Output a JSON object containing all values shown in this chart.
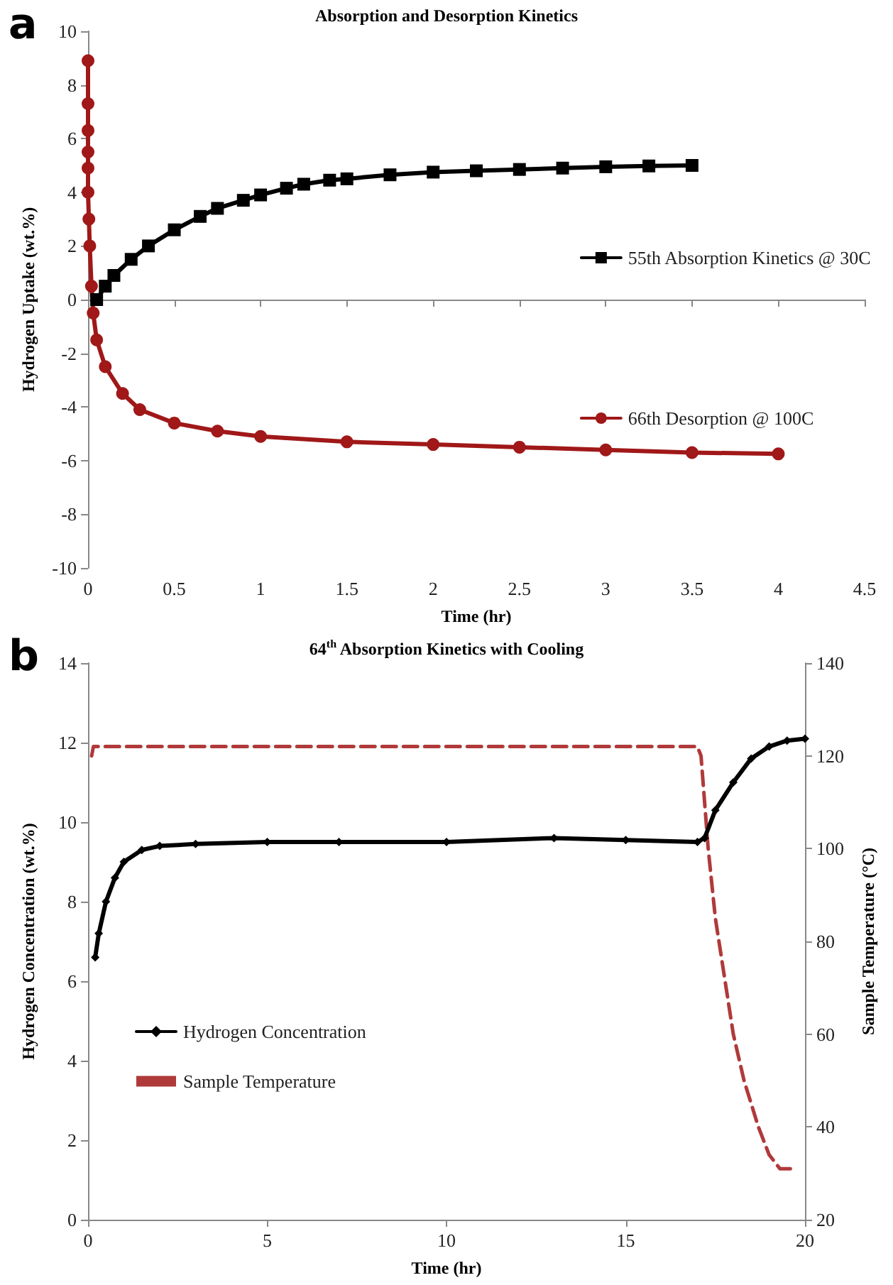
{
  "chart_data": [
    {
      "type": "line",
      "title": "Absorption and Desorption Kinetics",
      "xlabel": "Time (hr)",
      "ylabel": "Hydrogen Uptake (wt.%)",
      "annotations": [
        "a"
      ],
      "xlim": [
        0,
        4.5
      ],
      "xticks": [
        0,
        0.5,
        1,
        1.5,
        2,
        2.5,
        3,
        3.5,
        4,
        4.5
      ],
      "ylim": [
        -10,
        10
      ],
      "yticks": [
        -10,
        -8,
        -6,
        -4,
        -2,
        0,
        2,
        4,
        6,
        8,
        10
      ],
      "legend": "right",
      "series": [
        {
          "name": "55th Absorption Kinetics @ 30C",
          "color": "#000000",
          "marker": "square",
          "x": [
            0.05,
            0.1,
            0.15,
            0.25,
            0.35,
            0.5,
            0.65,
            0.75,
            0.9,
            1,
            1.15,
            1.25,
            1.4,
            1.5,
            1.75,
            2,
            2.25,
            2.5,
            2.75,
            3,
            3.25,
            3.5
          ],
          "values": [
            0,
            0.5,
            0.9,
            1.5,
            2.0,
            2.6,
            3.1,
            3.4,
            3.7,
            3.9,
            4.15,
            4.3,
            4.45,
            4.5,
            4.65,
            4.75,
            4.8,
            4.85,
            4.9,
            4.95,
            4.98,
            5.0
          ]
        },
        {
          "name": "66th Desorption @ 100C",
          "color": "#a01818",
          "marker": "circle",
          "x": [
            0,
            0,
            0,
            0,
            0,
            0,
            0.005,
            0.01,
            0.02,
            0.03,
            0.05,
            0.1,
            0.2,
            0.3,
            0.5,
            0.75,
            1,
            1.5,
            2,
            2.5,
            3,
            3.5,
            4
          ],
          "values": [
            8.9,
            7.3,
            6.3,
            5.5,
            4.9,
            4.0,
            3.0,
            2.0,
            0.5,
            -0.5,
            -1.5,
            -2.5,
            -3.5,
            -4.1,
            -4.6,
            -4.9,
            -5.1,
            -5.3,
            -5.4,
            -5.5,
            -5.6,
            -5.7,
            -5.75
          ]
        }
      ]
    },
    {
      "type": "line",
      "title": "64$^{th}$ Absorption Kinetics with Cooling",
      "xlabel": "Time (hr)",
      "ylabel": "Hydrogen Concentration (wt.%)",
      "y2label": "Sample Temperature (°C)",
      "annotations": [
        "b"
      ],
      "xlim": [
        0,
        20
      ],
      "xticks": [
        0,
        5,
        10,
        15,
        20
      ],
      "ylim": [
        0,
        14
      ],
      "yticks": [
        0,
        2,
        4,
        6,
        8,
        10,
        12,
        14
      ],
      "y2lim": [
        20,
        140
      ],
      "y2ticks": [
        20,
        40,
        60,
        80,
        100,
        120,
        140
      ],
      "grid": false,
      "legend": "left",
      "series": [
        {
          "name": "Hydrogen Concentration",
          "color": "#000000",
          "marker": "diamond",
          "line_style": "solid",
          "x": [
            0.2,
            0.3,
            0.5,
            0.75,
            1,
            1.5,
            2,
            3,
            5,
            7,
            10,
            13,
            15,
            17,
            17.2,
            17.5,
            18,
            18.5,
            19,
            19.5,
            20
          ],
          "values": [
            6.6,
            7.2,
            8.0,
            8.6,
            9.0,
            9.3,
            9.4,
            9.45,
            9.5,
            9.5,
            9.5,
            9.6,
            9.55,
            9.5,
            9.6,
            10.3,
            11.0,
            11.6,
            11.9,
            12.05,
            12.1
          ]
        },
        {
          "name": "Sample Temperature",
          "color": "#b03a3a",
          "marker": "none",
          "line_style": "dashed",
          "axis": "y2",
          "x": [
            0.1,
            0.15,
            5,
            10,
            15,
            17,
            17.1,
            17.3,
            17.5,
            17.8,
            18,
            18.3,
            18.7,
            19,
            19.3,
            19.7
          ],
          "values": [
            120,
            122,
            122,
            122,
            122,
            122,
            120,
            100,
            85,
            70,
            60,
            50,
            40,
            34,
            31,
            31
          ]
        }
      ]
    }
  ]
}
